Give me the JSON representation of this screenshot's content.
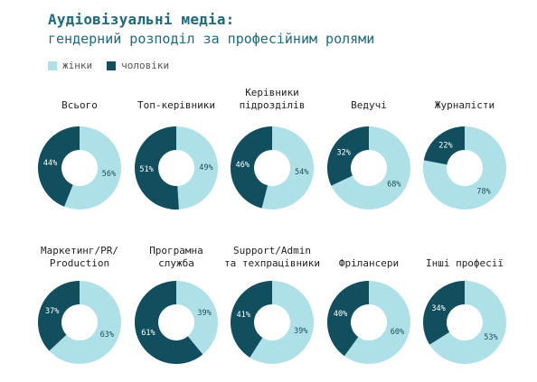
{
  "title": "Аудіовізуальні медіа:",
  "subtitle": "гендерний розподіл за професійним ролями",
  "colors": {
    "women": "#aee0e8",
    "men": "#124f5e",
    "title": "#1d6a7c"
  },
  "chart_data": {
    "type": "pie",
    "variant": "donut",
    "legend": [
      {
        "key": "women",
        "label": "жінки"
      },
      {
        "key": "men",
        "label": "чоловіки"
      }
    ],
    "panels": [
      {
        "label": [
          "Всього"
        ],
        "women": 56,
        "men": 44
      },
      {
        "label": [
          "Топ-керівники"
        ],
        "women": 49,
        "men": 51
      },
      {
        "label": [
          "Керівники",
          "підрозділів"
        ],
        "women": 54,
        "men": 46
      },
      {
        "label": [
          "Ведучі"
        ],
        "women": 68,
        "men": 32
      },
      {
        "label": [
          "Журналісти"
        ],
        "women": 78,
        "men": 22
      },
      {
        "label": [
          "Маркетинг/PR/",
          "Production"
        ],
        "women": 63,
        "men": 37
      },
      {
        "label": [
          "Програмна",
          "служба"
        ],
        "women": 39,
        "men": 61
      },
      {
        "label": [
          "Support/Admin",
          "та техпрацівники"
        ],
        "women": 39,
        "men": 41
      },
      {
        "label": [
          "Фрілансери"
        ],
        "women": 60,
        "men": 40
      },
      {
        "label": [
          "Інші професії"
        ],
        "women": 53,
        "men": 34
      }
    ]
  }
}
